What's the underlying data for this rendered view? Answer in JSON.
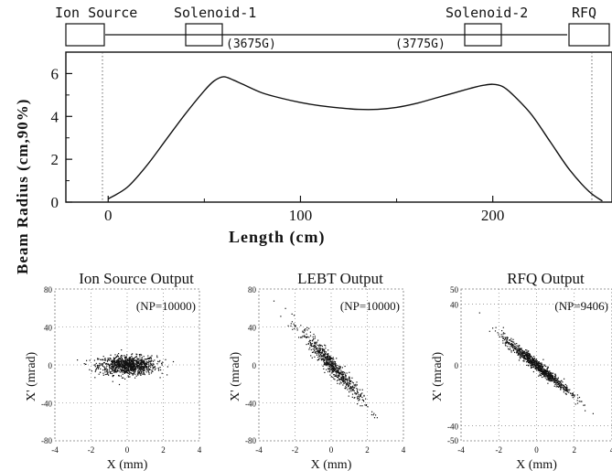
{
  "beamline": {
    "labels": [
      "Ion Source",
      "Solenoid-1",
      "Solenoid-2",
      "RFQ"
    ],
    "fields": [
      "(3675G)",
      "(3775G)"
    ]
  },
  "chart_data": [
    {
      "type": "line",
      "xlabel": "Length (cm)",
      "ylabel": "Beam Radius (cm,90%)",
      "xlim": [
        -22,
        262
      ],
      "ylim": [
        0,
        7
      ],
      "xticks": [
        "0",
        "100",
        "200"
      ],
      "yticks": [
        "0",
        "2",
        "4",
        "6"
      ],
      "x": [
        0,
        10,
        20,
        30,
        40,
        50,
        55,
        60,
        65,
        70,
        80,
        90,
        100,
        110,
        120,
        130,
        140,
        150,
        160,
        170,
        180,
        190,
        195,
        200,
        205,
        210,
        220,
        230,
        240,
        250,
        257
      ],
      "y": [
        0.15,
        0.7,
        1.7,
        2.9,
        4.1,
        5.2,
        5.65,
        5.85,
        5.7,
        5.5,
        5.1,
        4.85,
        4.65,
        4.5,
        4.4,
        4.33,
        4.33,
        4.42,
        4.6,
        4.85,
        5.1,
        5.35,
        5.45,
        5.5,
        5.4,
        5.05,
        4.1,
        2.8,
        1.5,
        0.5,
        0.05
      ]
    },
    {
      "type": "scatter",
      "title": "Ion Source Output",
      "annotation": "(NP=10000)",
      "xlabel": "X (mm)",
      "ylabel": "X' (mrad)",
      "xlim": [
        -4,
        4
      ],
      "ylim": [
        -80,
        80
      ],
      "xticks": [
        "-4",
        "-2",
        "0",
        "2",
        "4"
      ],
      "yticks": [
        "80",
        "40",
        "0",
        "-40",
        "-80"
      ],
      "cloud": {
        "cx": 0,
        "sx": 0.8,
        "sy": 5,
        "slope": 0,
        "count": 1000
      }
    },
    {
      "type": "scatter",
      "title": "LEBT Output",
      "annotation": "(NP=10000)",
      "xlabel": "X (mm)",
      "ylabel": "X' (mrad)",
      "xlim": [
        -4,
        4
      ],
      "ylim": [
        -80,
        80
      ],
      "xticks": [
        "-4",
        "-2",
        "0",
        "2",
        "4"
      ],
      "yticks": [
        "80",
        "40",
        "0",
        "-40",
        "-80"
      ],
      "cloud": {
        "cx": 0,
        "sx": 0.85,
        "sy": 5,
        "slope": -21,
        "count": 650
      }
    },
    {
      "type": "scatter",
      "title": "RFQ Output",
      "annotation": "(NP=9406)",
      "xlabel": "X (mm)",
      "ylabel": "X' (mrad)",
      "xlim": [
        -4,
        4
      ],
      "ylim": [
        -50,
        50
      ],
      "xticks": [
        "-4",
        "-2",
        "0",
        "2",
        "4"
      ],
      "yticks": [
        "50",
        "40",
        "0",
        "-40",
        "-50"
      ],
      "cloud": {
        "cx": 0,
        "sx": 0.9,
        "sy": 2,
        "slope": -10,
        "count": 900
      }
    }
  ]
}
